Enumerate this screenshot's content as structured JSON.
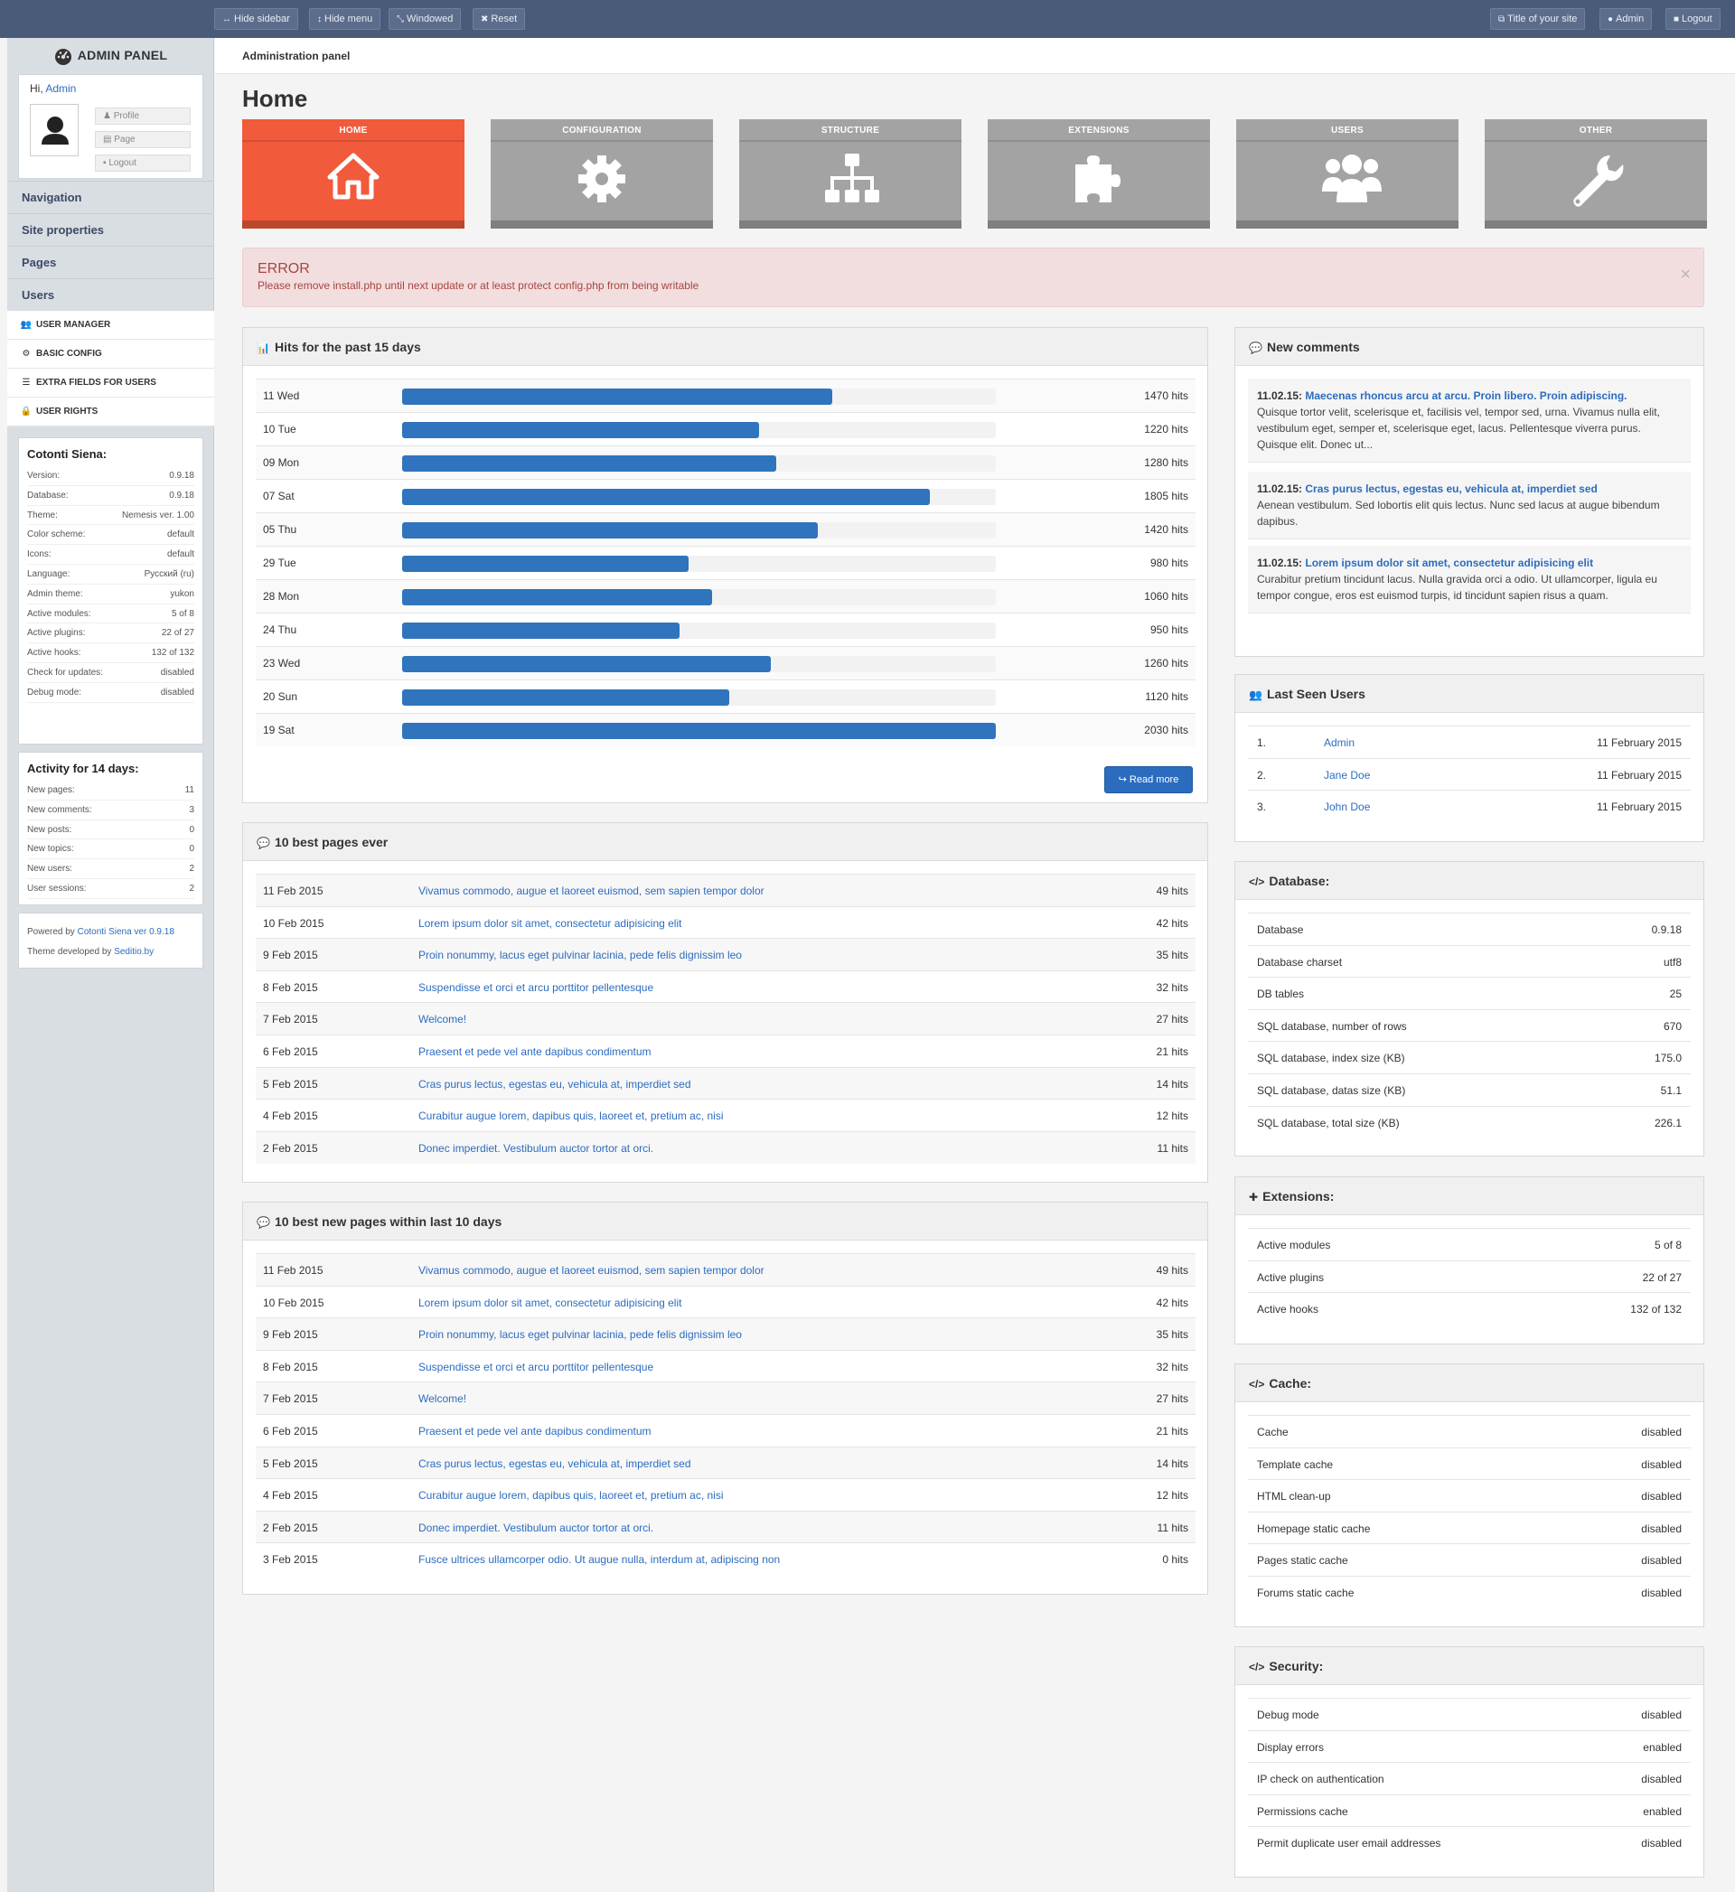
{
  "topbar": {
    "hide_sidebar": "Hide sidebar",
    "hide_menu": "Hide menu",
    "windowed": "Windowed",
    "reset": "Reset",
    "site_title": "Title of your site",
    "admin": "Admin",
    "logout": "Logout"
  },
  "sidebar": {
    "brand": "ADMIN PANEL",
    "hi": "Hi,",
    "user": "Admin",
    "profile": "Profile",
    "page": "Page",
    "logout": "Logout",
    "nav": [
      "Navigation",
      "Site properties",
      "Pages",
      "Users"
    ],
    "subnav": [
      "USER MANAGER",
      "BASIC CONFIG",
      "EXTRA FIELDS FOR USERS",
      "USER RIGHTS"
    ],
    "info_title": "Cotonti Siena:",
    "info": [
      [
        "Version:",
        "0.9.18"
      ],
      [
        "Database:",
        "0.9.18"
      ],
      [
        "Theme:",
        "Nemesis ver. 1.00"
      ],
      [
        "Color scheme:",
        "default"
      ],
      [
        "Icons:",
        "default"
      ],
      [
        "Language:",
        "Русский (ru)"
      ],
      [
        "Admin theme:",
        "yukon"
      ],
      [
        "Active modules:",
        "5 of 8"
      ],
      [
        "Active plugins:",
        "22 of 27"
      ],
      [
        "Active hooks:",
        "132 of 132"
      ],
      [
        "Check for updates:",
        "disabled"
      ],
      [
        "Debug mode:",
        "disabled"
      ]
    ],
    "activity_title": "Activity for 14 days:",
    "activity": [
      [
        "New pages:",
        "11"
      ],
      [
        "New comments:",
        "3"
      ],
      [
        "New posts:",
        "0"
      ],
      [
        "New topics:",
        "0"
      ],
      [
        "New users:",
        "2"
      ],
      [
        "User sessions:",
        "2"
      ]
    ],
    "powered_by": "Powered by",
    "powered_link": "Cotonti Siena ver 0.9.18",
    "theme_by": "Theme developed by",
    "theme_link": "Seditio.by"
  },
  "breadcrumb": "Administration panel",
  "page_title": "Home",
  "tiles": [
    "HOME",
    "CONFIGURATION",
    "STRUCTURE",
    "EXTENSIONS",
    "USERS",
    "OTHER"
  ],
  "error": {
    "title": "ERROR",
    "message": "Please remove install.php until next update or at least protect config.php from being writable",
    "close": "×"
  },
  "hits_panel": {
    "title": "Hits for the past 15 days",
    "read_more": "Read more"
  },
  "chart_data": {
    "type": "bar",
    "orientation": "horizontal",
    "xlim": [
      0,
      2030
    ],
    "categories": [
      "11 Wed",
      "10 Tue",
      "09 Mon",
      "07 Sat",
      "05 Thu",
      "29 Tue",
      "28 Mon",
      "24 Thu",
      "23 Wed",
      "20 Sun",
      "19 Sat"
    ],
    "values": [
      1470,
      1220,
      1280,
      1805,
      1420,
      980,
      1060,
      950,
      1260,
      1120,
      2030
    ],
    "value_labels": [
      "1470 hits",
      "1220 hits",
      "1280 hits",
      "1805 hits",
      "1420 hits",
      "980 hits",
      "1060 hits",
      "950 hits",
      "1260 hits",
      "1120 hits",
      "2030 hits"
    ]
  },
  "best_pages": {
    "title": "10 best pages ever",
    "rows": [
      [
        "11 Feb 2015",
        "Vivamus commodo, augue et laoreet euismod, sem sapien tempor dolor",
        "49 hits"
      ],
      [
        "10 Feb 2015",
        "Lorem ipsum dolor sit amet, consectetur adipisicing elit",
        "42 hits"
      ],
      [
        "9 Feb 2015",
        "Proin nonummy, lacus eget pulvinar lacinia, pede felis dignissim leo",
        "35 hits"
      ],
      [
        "8 Feb 2015",
        "Suspendisse et orci et arcu porttitor pellentesque",
        "32 hits"
      ],
      [
        "7 Feb 2015",
        "Welcome!",
        "27 hits"
      ],
      [
        "6 Feb 2015",
        "Praesent et pede vel ante dapibus condimentum",
        "21 hits"
      ],
      [
        "5 Feb 2015",
        "Cras purus lectus, egestas eu, vehicula at, imperdiet sed",
        "14 hits"
      ],
      [
        "4 Feb 2015",
        "Curabitur augue lorem, dapibus quis, laoreet et, pretium ac, nisi",
        "12 hits"
      ],
      [
        "2 Feb 2015",
        "Donec imperdiet. Vestibulum auctor tortor at orci.",
        "11 hits"
      ]
    ]
  },
  "new_pages": {
    "title": "10 best new pages within last 10 days",
    "rows": [
      [
        "11 Feb 2015",
        "Vivamus commodo, augue et laoreet euismod, sem sapien tempor dolor",
        "49 hits"
      ],
      [
        "10 Feb 2015",
        "Lorem ipsum dolor sit amet, consectetur adipisicing elit",
        "42 hits"
      ],
      [
        "9 Feb 2015",
        "Proin nonummy, lacus eget pulvinar lacinia, pede felis dignissim leo",
        "35 hits"
      ],
      [
        "8 Feb 2015",
        "Suspendisse et orci et arcu porttitor pellentesque",
        "32 hits"
      ],
      [
        "7 Feb 2015",
        "Welcome!",
        "27 hits"
      ],
      [
        "6 Feb 2015",
        "Praesent et pede vel ante dapibus condimentum",
        "21 hits"
      ],
      [
        "5 Feb 2015",
        "Cras purus lectus, egestas eu, vehicula at, imperdiet sed",
        "14 hits"
      ],
      [
        "4 Feb 2015",
        "Curabitur augue lorem, dapibus quis, laoreet et, pretium ac, nisi",
        "12 hits"
      ],
      [
        "2 Feb 2015",
        "Donec imperdiet. Vestibulum auctor tortor at orci.",
        "11 hits"
      ],
      [
        "3 Feb 2015",
        "Fusce ultrices ullamcorper odio. Ut augue nulla, interdum at, adipiscing non",
        "0 hits"
      ]
    ]
  },
  "comments": {
    "title": "New comments",
    "items": [
      [
        "11.02.15:",
        "Maecenas rhoncus arcu at arcu. Proin libero. Proin adipiscing.",
        "Quisque tortor velit, scelerisque et, facilisis vel, tempor sed, urna. Vivamus nulla elit, vestibulum eget, semper et, scelerisque eget, lacus. Pellentesque viverra purus. Quisque elit. Donec ut..."
      ],
      [
        "11.02.15:",
        "Cras purus lectus, egestas eu, vehicula at, imperdiet sed",
        "Aenean vestibulum. Sed lobortis elit quis lectus. Nunc sed lacus at augue bibendum dapibus."
      ],
      [
        "11.02.15:",
        "Lorem ipsum dolor sit amet, consectetur adipisicing elit",
        "Curabitur pretium tincidunt lacus. Nulla gravida orci a odio. Ut ullamcorper, ligula eu tempor congue, eros est euismod turpis, id tincidunt sapien risus a quam."
      ]
    ]
  },
  "last_seen": {
    "title": "Last Seen Users",
    "rows": [
      [
        "1.",
        "Admin",
        "11 February 2015"
      ],
      [
        "2.",
        "Jane Doe",
        "11 February 2015"
      ],
      [
        "3.",
        "John Doe",
        "11 February 2015"
      ]
    ]
  },
  "database": {
    "title": "Database:",
    "rows": [
      [
        "Database",
        "0.9.18"
      ],
      [
        "Database charset",
        "utf8"
      ],
      [
        "DB tables",
        "25"
      ],
      [
        "SQL database, number of rows",
        "670"
      ],
      [
        "SQL database, index size (KB)",
        "175.0"
      ],
      [
        "SQL database, datas size (KB)",
        "51.1"
      ],
      [
        "SQL database, total size (KB)",
        "226.1"
      ]
    ]
  },
  "extensions": {
    "title": "Extensions:",
    "rows": [
      [
        "Active modules",
        "5 of 8"
      ],
      [
        "Active plugins",
        "22 of 27"
      ],
      [
        "Active hooks",
        "132 of 132"
      ]
    ]
  },
  "cache": {
    "title": "Cache:",
    "rows": [
      [
        "Cache",
        "disabled"
      ],
      [
        "Template cache",
        "disabled"
      ],
      [
        "HTML clean-up",
        "disabled"
      ],
      [
        "Homepage static cache",
        "disabled"
      ],
      [
        "Pages static cache",
        "disabled"
      ],
      [
        "Forums static cache",
        "disabled"
      ]
    ]
  },
  "security": {
    "title": "Security:",
    "rows": [
      [
        "Debug mode",
        "disabled"
      ],
      [
        "Display errors",
        "enabled"
      ],
      [
        "IP check on authentication",
        "disabled"
      ],
      [
        "Permissions cache",
        "enabled"
      ],
      [
        "Permit duplicate user email addresses",
        "disabled"
      ]
    ]
  }
}
